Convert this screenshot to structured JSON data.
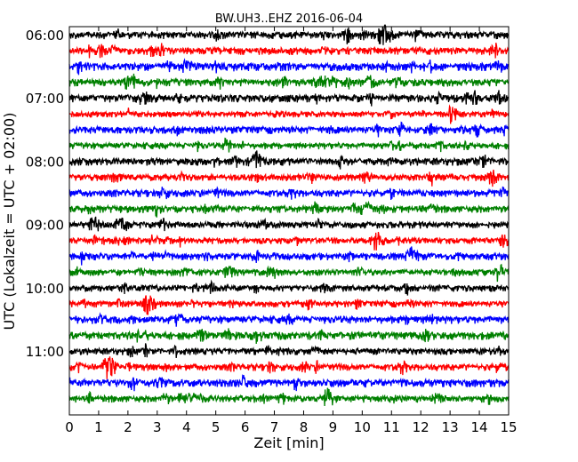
{
  "chart_data": {
    "type": "line",
    "title": "BW.UH3..EHZ 2016-06-04",
    "xlabel": "Zeit  [min]",
    "ylabel": "UTC (Lokalzeit = UTC + 02:00)",
    "xlim": [
      0,
      15
    ],
    "x_ticks": [
      0,
      1,
      2,
      3,
      4,
      5,
      6,
      7,
      8,
      9,
      10,
      11,
      12,
      13,
      14,
      15
    ],
    "y_ticks": [
      {
        "label": "06:00",
        "trace": 0
      },
      {
        "label": "07:00",
        "trace": 4
      },
      {
        "label": "08:00",
        "trace": 8
      },
      {
        "label": "09:00",
        "trace": 12
      },
      {
        "label": "10:00",
        "trace": 16
      },
      {
        "label": "11:00",
        "trace": 20
      }
    ],
    "trace_interval_min": 15,
    "trace_count": 24,
    "color_cycle": [
      "#000000",
      "#ff0000",
      "#0000ff",
      "#008000"
    ],
    "grid": false,
    "legend": "none",
    "notable_events_min": [
      {
        "trace": 0,
        "t": 10.8
      },
      {
        "trace": 3,
        "t": 2.1
      },
      {
        "trace": 8,
        "t": 6.4
      },
      {
        "trace": 9,
        "t": 14.5
      },
      {
        "trace": 13,
        "t": 10.5
      },
      {
        "trace": 14,
        "t": 11.7
      },
      {
        "trace": 17,
        "t": 2.7
      },
      {
        "trace": 21,
        "t": 1.3
      },
      {
        "trace": 23,
        "t": 8.8
      }
    ]
  }
}
